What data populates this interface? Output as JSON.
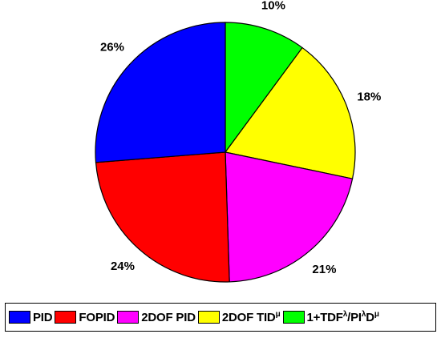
{
  "chart_data": {
    "type": "pie",
    "title": "",
    "slices": [
      {
        "name": "1+TDF^λ/PI^λD^μ",
        "label": "10%",
        "value": 10,
        "color": "#00ff00"
      },
      {
        "name": "2DOF TID^μ",
        "label": "18%",
        "value": 18,
        "color": "#ffff00"
      },
      {
        "name": "2DOF PID",
        "label": "21%",
        "value": 21,
        "color": "#ff00ff"
      },
      {
        "name": "FOPID",
        "label": "24%",
        "value": 24,
        "color": "#ff0000"
      },
      {
        "name": "PID",
        "label": "26%",
        "value": 26,
        "color": "#0000ff"
      }
    ],
    "start": "12 o'clock",
    "direction": "clockwise",
    "legend": {
      "position": "bottom",
      "entries": [
        {
          "base": "PID",
          "color": "#0000ff"
        },
        {
          "base": "FOPID",
          "color": "#ff0000"
        },
        {
          "base": "2DOF PID",
          "color": "#ff00ff"
        },
        {
          "base": "2DOF TID",
          "sup": "μ",
          "color": "#ffff00"
        },
        {
          "base": "1+TDF",
          "sup": "λ",
          "mid": "/PI",
          "sup2": "λ",
          "mid2": "D",
          "sup3": "μ",
          "color": "#00ff00"
        }
      ]
    }
  }
}
